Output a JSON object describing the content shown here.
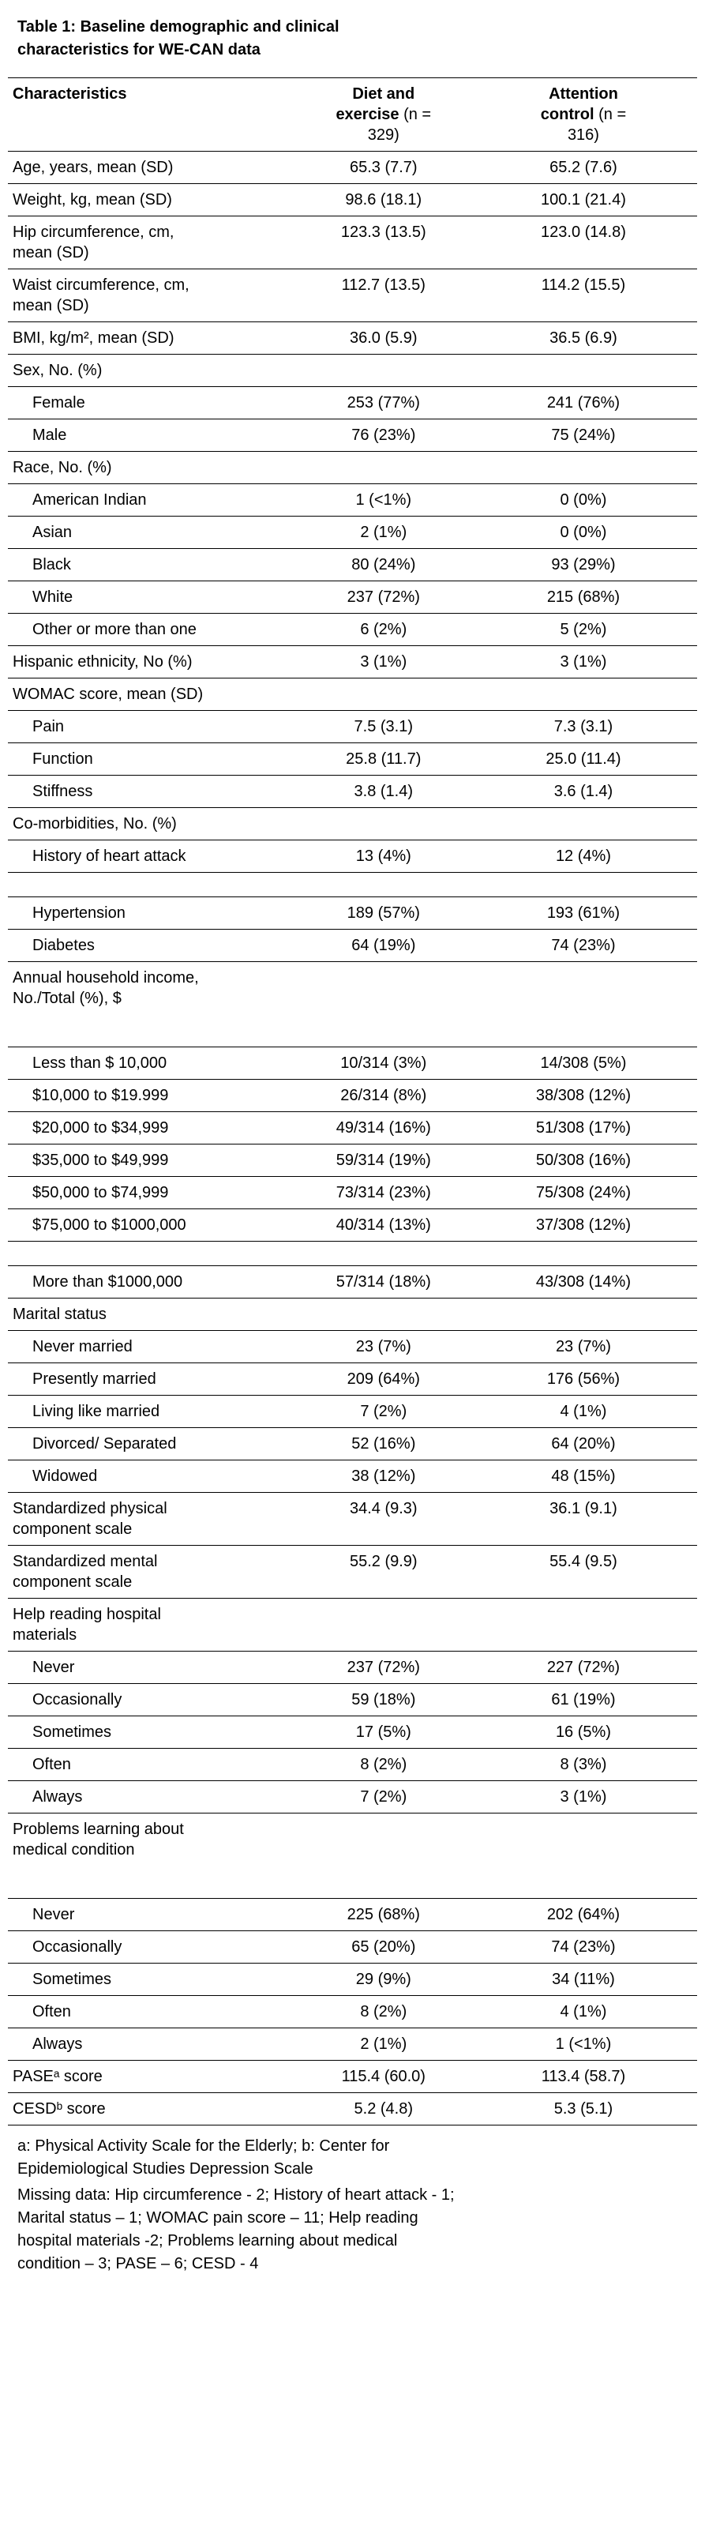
{
  "title": "Table 1: Baseline demographic and clinical characteristics for WE-CAN data",
  "table": {
    "header": {
      "characteristics": "Characteristics",
      "col1_name": "Diet and exercise",
      "col1_n": "(n = 329)",
      "col2_name": "Attention control",
      "col2_n": "(n = 316)"
    },
    "rows": [
      {
        "type": "data",
        "label": "Age, years, mean (SD)",
        "c1": "65.3 (7.7)",
        "c2": "65.2 (7.6)"
      },
      {
        "type": "data",
        "label": "Weight, kg, mean (SD)",
        "c1": "98.6 (18.1)",
        "c2": "100.1 (21.4)"
      },
      {
        "type": "data",
        "label": "Hip circumference, cm, mean (SD)",
        "c1": "123.3 (13.5)",
        "c2": "123.0 (14.8)"
      },
      {
        "type": "data",
        "label": "Waist circumference, cm, mean (SD)",
        "c1": "112.7 (13.5)",
        "c2": "114.2 (15.5)"
      },
      {
        "type": "data",
        "label": "BMI, kg/m², mean (SD)",
        "c1": "36.0 (5.9)",
        "c2": "36.5 (6.9)"
      },
      {
        "type": "section",
        "label": "Sex, No. (%)"
      },
      {
        "type": "sub",
        "label": "Female",
        "c1": "253 (77%)",
        "c2": "241 (76%)"
      },
      {
        "type": "sub",
        "label": "Male",
        "c1": "76 (23%)",
        "c2": "75 (24%)"
      },
      {
        "type": "section",
        "label": "Race, No. (%)"
      },
      {
        "type": "sub",
        "label": "American Indian",
        "c1": "1 (<1%)",
        "c2": "0 (0%)"
      },
      {
        "type": "sub",
        "label": "Asian",
        "c1": "2 (1%)",
        "c2": "0 (0%)"
      },
      {
        "type": "sub",
        "label": "Black",
        "c1": "80 (24%)",
        "c2": "93 (29%)"
      },
      {
        "type": "sub",
        "label": "White",
        "c1": "237 (72%)",
        "c2": "215 (68%)"
      },
      {
        "type": "sub",
        "label": "Other or more than one",
        "c1": "6 (2%)",
        "c2": "5 (2%)"
      },
      {
        "type": "data",
        "label": "Hispanic ethnicity, No (%)",
        "c1": "3 (1%)",
        "c2": "3 (1%)"
      },
      {
        "type": "section",
        "label": "WOMAC score, mean (SD)"
      },
      {
        "type": "sub",
        "label": "Pain",
        "c1": "7.5 (3.1)",
        "c2": "7.3 (3.1)"
      },
      {
        "type": "sub",
        "label": "Function",
        "c1": "25.8 (11.7)",
        "c2": "25.0 (11.4)"
      },
      {
        "type": "sub",
        "label": "Stiffness",
        "c1": "3.8 (1.4)",
        "c2": "3.6 (1.4)"
      },
      {
        "type": "section",
        "label": "Co-morbidities, No. (%)"
      },
      {
        "type": "sub",
        "label": "History of heart attack",
        "c1": "13 (4%)",
        "c2": "12 (4%)"
      },
      {
        "type": "spacer"
      },
      {
        "type": "sub",
        "label": "Hypertension",
        "c1": "189 (57%)",
        "c2": "193 (61%)"
      },
      {
        "type": "sub",
        "label": "Diabetes",
        "c1": "64 (19%)",
        "c2": "74 (23%)"
      },
      {
        "type": "section-tall",
        "label": "Annual household income, No./Total (%), $"
      },
      {
        "type": "sub",
        "label": "Less than $ 10,000",
        "c1": "10/314 (3%)",
        "c2": "14/308 (5%)"
      },
      {
        "type": "sub",
        "label": "$10,000 to $19.999",
        "c1": "26/314 (8%)",
        "c2": "38/308 (12%)"
      },
      {
        "type": "sub",
        "label": "$20,000 to $34,999",
        "c1": "49/314 (16%)",
        "c2": "51/308 (17%)"
      },
      {
        "type": "sub",
        "label": "$35,000 to $49,999",
        "c1": "59/314 (19%)",
        "c2": "50/308 (16%)"
      },
      {
        "type": "sub",
        "label": "$50,000 to $74,999",
        "c1": "73/314 (23%)",
        "c2": "75/308 (24%)"
      },
      {
        "type": "sub",
        "label": "$75,000 to $1000,000",
        "c1": "40/314 (13%)",
        "c2": "37/308 (12%)"
      },
      {
        "type": "spacer"
      },
      {
        "type": "sub",
        "label": "More than $1000,000",
        "c1": "57/314 (18%)",
        "c2": "43/308 (14%)"
      },
      {
        "type": "section",
        "label": "Marital status"
      },
      {
        "type": "sub",
        "label": "Never married",
        "c1": "23 (7%)",
        "c2": "23 (7%)"
      },
      {
        "type": "sub",
        "label": "Presently married",
        "c1": "209 (64%)",
        "c2": "176 (56%)"
      },
      {
        "type": "sub",
        "label": "Living like married",
        "c1": "7 (2%)",
        "c2": "4 (1%)"
      },
      {
        "type": "sub",
        "label": "Divorced/ Separated",
        "c1": "52 (16%)",
        "c2": "64 (20%)"
      },
      {
        "type": "sub",
        "label": "Widowed",
        "c1": "38 (12%)",
        "c2": "48 (15%)"
      },
      {
        "type": "data",
        "label": "Standardized physical component scale",
        "c1": "34.4 (9.3)",
        "c2": "36.1 (9.1)"
      },
      {
        "type": "data",
        "label": "Standardized mental component scale",
        "c1": "55.2 (9.9)",
        "c2": "55.4 (9.5)"
      },
      {
        "type": "section",
        "label": "Help reading hospital materials"
      },
      {
        "type": "sub",
        "label": "Never",
        "c1": "237 (72%)",
        "c2": "227 (72%)"
      },
      {
        "type": "sub",
        "label": "Occasionally",
        "c1": "59 (18%)",
        "c2": "61 (19%)"
      },
      {
        "type": "sub",
        "label": "Sometimes",
        "c1": "17 (5%)",
        "c2": "16 (5%)"
      },
      {
        "type": "sub",
        "label": "Often",
        "c1": "8 (2%)",
        "c2": "8 (3%)"
      },
      {
        "type": "sub",
        "label": "Always",
        "c1": "7 (2%)",
        "c2": "3 (1%)"
      },
      {
        "type": "section-tall",
        "label": "Problems learning about medical condition"
      },
      {
        "type": "sub",
        "label": "Never",
        "c1": "225 (68%)",
        "c2": "202 (64%)"
      },
      {
        "type": "sub",
        "label": "Occasionally",
        "c1": "65 (20%)",
        "c2": "74 (23%)"
      },
      {
        "type": "sub",
        "label": "Sometimes",
        "c1": "29 (9%)",
        "c2": "34 (11%)"
      },
      {
        "type": "sub",
        "label": "Often",
        "c1": "8 (2%)",
        "c2": "4 (1%)"
      },
      {
        "type": "sub",
        "label": "Always",
        "c1": "2 (1%)",
        "c2": "1 (<1%)"
      },
      {
        "type": "data",
        "label": "PASEᵃ score",
        "c1": "115.4 (60.0)",
        "c2": "113.4 (58.7)"
      },
      {
        "type": "data",
        "label": "CESDᵇ score",
        "c1": "5.2 (4.8)",
        "c2": "5.3 (5.1)"
      }
    ]
  },
  "footnotes": [
    "a: Physical Activity Scale for the Elderly; b: Center for Epidemiological Studies Depression Scale",
    "Missing data: Hip circumference - 2; History of heart attack - 1; Marital status – 1; WOMAC pain score – 11; Help reading hospital materials -2; Problems learning about medical condition – 3; PASE – 6; CESD - 4"
  ]
}
